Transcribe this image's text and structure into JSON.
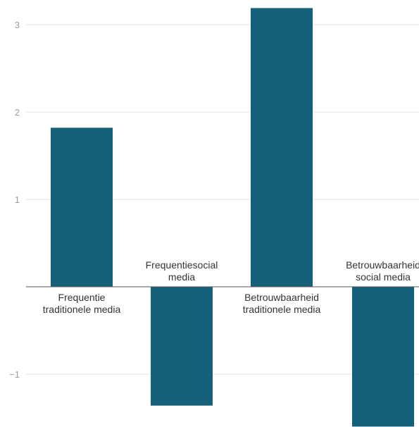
{
  "chart_data": {
    "type": "bar",
    "categories": [
      "Frequentie traditionele media",
      "Frequentiesocial media",
      "Betrouwbaarheid traditionele media",
      "Betrouwbaarheid social media"
    ],
    "category_label_lines": [
      [
        "Frequentie",
        "traditionele media"
      ],
      [
        "Frequentiesocial",
        "media"
      ],
      [
        "Betrouwbaarheid",
        "traditionele media"
      ],
      [
        "Betrouwbaarheid",
        "social media"
      ]
    ],
    "values": [
      1.82,
      -1.36,
      3.19,
      -1.6
    ],
    "yticks": [
      -1,
      1,
      2,
      3
    ],
    "ytick_labels": [
      "−1",
      "1",
      "2",
      "3"
    ],
    "ylim": [
      -1.6,
      3.3
    ],
    "grid": true,
    "bar_color": "#17607a",
    "grid_color": "#e6e6e6",
    "axis_color": "#555555",
    "title": "",
    "xlabel": "",
    "ylabel": ""
  }
}
